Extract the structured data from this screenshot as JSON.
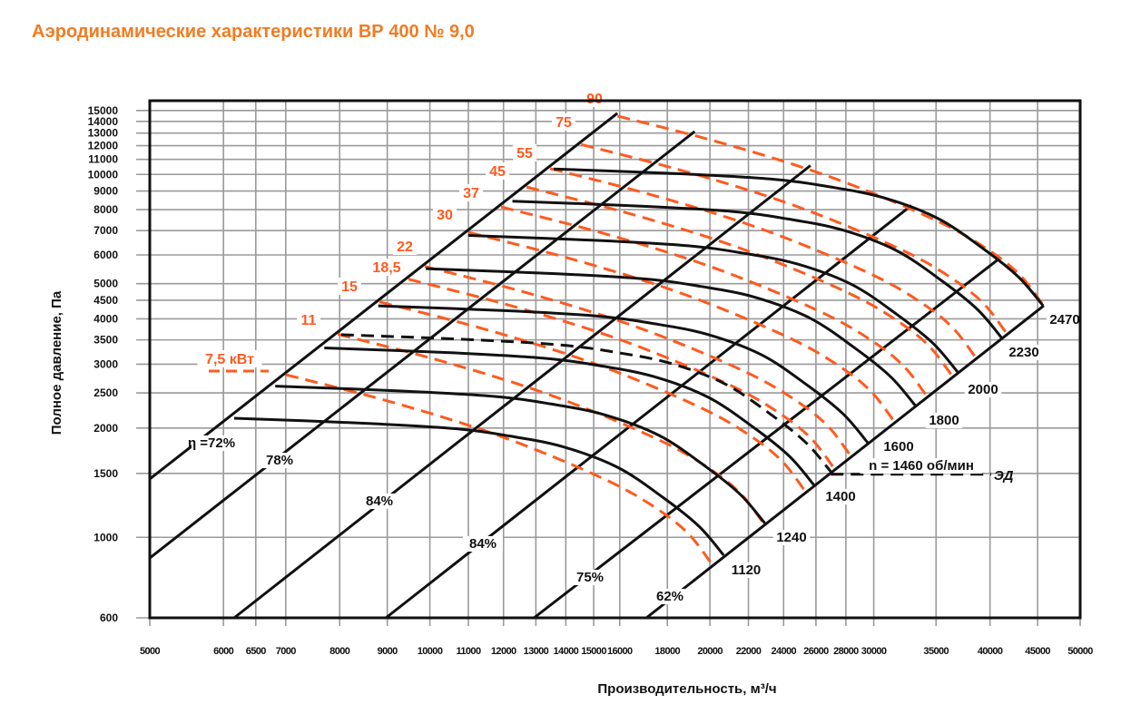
{
  "title": "Аэродинамические характеристики ВР 400 № 9,0",
  "chart_data": {
    "type": "line",
    "title": "Аэродинамические характеристики ВР 400 № 9,0",
    "xlabel": "Производительность, м³/ч",
    "ylabel": "Полное давление, Па",
    "xscale": "log",
    "yscale": "log",
    "xlim": [
      5000,
      50000
    ],
    "ylim": [
      600,
      15000
    ],
    "grid": true,
    "xticks": [
      5000,
      6000,
      6500,
      7000,
      8000,
      9000,
      10000,
      11000,
      12000,
      13000,
      14000,
      15000,
      16000,
      18000,
      20000,
      22000,
      24000,
      26000,
      28000,
      30000,
      35000,
      40000,
      45000,
      50000
    ],
    "yticks": [
      600,
      1000,
      1500,
      2000,
      2500,
      3000,
      3500,
      4000,
      4500,
      5000,
      6000,
      7000,
      8000,
      9000,
      10000,
      11000,
      12000,
      13000,
      14000,
      15000
    ],
    "speed_base": {
      "rpm": 1120,
      "flow": [
        6161,
        8478,
        10612,
        12145,
        13900,
        15907,
        17790,
        19460,
        20690
      ],
      "pressure": [
        2129,
        2063,
        1994,
        1904,
        1777,
        1560,
        1290,
        1073,
        893
      ]
    },
    "speed_curves": [
      {
        "rpm": 1120,
        "label": "1120"
      },
      {
        "rpm": 1240,
        "label": "1240"
      },
      {
        "rpm": 1400,
        "label": "1400"
      },
      {
        "rpm": 1460,
        "label": "n = 1460 об/мин",
        "dashed": true
      },
      {
        "rpm": 1600,
        "label": "1600"
      },
      {
        "rpm": 1800,
        "label": "1800"
      },
      {
        "rpm": 2000,
        "label": "2000"
      },
      {
        "rpm": 2230,
        "label": "2230"
      },
      {
        "rpm": 2470,
        "label": "2470"
      }
    ],
    "motor_label": "ЭД",
    "power_base": {
      "flow": [
        7004,
        8868,
        11101,
        13290,
        15907,
        17790,
        19030,
        20040
      ],
      "pressure": [
        2806,
        2402,
        2021,
        1704,
        1390,
        1170,
        1013,
        852
      ]
    },
    "power_curves": [
      {
        "kw": 7.5,
        "label": "7,5 кВт",
        "scale": 1.0
      },
      {
        "kw": 11,
        "label": "11",
        "scale": 1.137
      },
      {
        "kw": 15,
        "label": "15",
        "scale": 1.26
      },
      {
        "kw": 18.5,
        "label": "18,5",
        "scale": 1.354
      },
      {
        "kw": 22,
        "label": "22",
        "scale": 1.41
      },
      {
        "kw": 30,
        "label": "30",
        "scale": 1.571
      },
      {
        "kw": 37,
        "label": "37",
        "scale": 1.703
      },
      {
        "kw": 45,
        "label": "45",
        "scale": 1.814
      },
      {
        "kw": 55,
        "label": "55",
        "scale": 1.923
      },
      {
        "kw": 75,
        "label": "75",
        "scale": 2.076
      },
      {
        "kw": 90,
        "label": "90",
        "scale": 2.272
      }
    ],
    "efficiency_lines": [
      {
        "label": "η =72%",
        "from": [
          5000,
          1448
        ],
        "to": [
          15907,
          14740
        ]
      },
      {
        "label": "78%",
        "from": [
          5000,
          877
        ],
        "to": [
          19260,
          13130
        ]
      },
      {
        "label": "84%",
        "from": [
          6161,
          600
        ],
        "to": [
          25650,
          10580
        ]
      },
      {
        "label": "84%",
        "from": [
          8970,
          600
        ],
        "to": [
          32930,
          8215
        ]
      },
      {
        "label": "75%",
        "from": [
          12940,
          600
        ],
        "to": [
          40840,
          5836
        ]
      },
      {
        "label": "62%",
        "from": [
          17090,
          600
        ],
        "to": [
          45690,
          4348
        ]
      }
    ],
    "colors": {
      "speed": "#111111",
      "power": "#ff5a1f",
      "grid": "#9a9a9a",
      "title": "#f07c22"
    }
  }
}
